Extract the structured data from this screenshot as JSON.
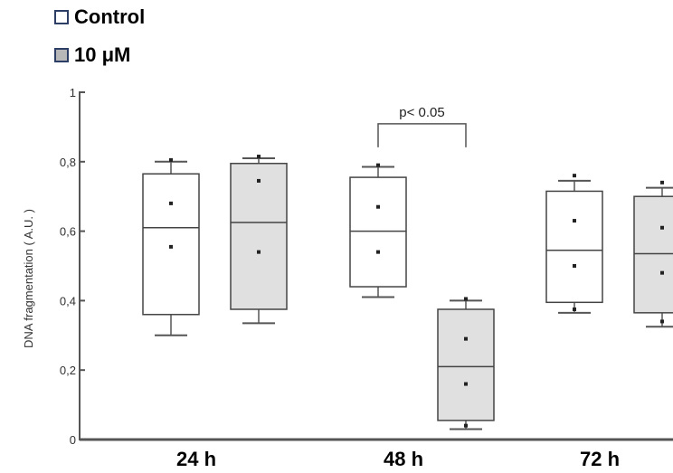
{
  "chart_data": {
    "type": "box",
    "ylabel": "DNA fragmentation ( A.U. )",
    "ylim": [
      0,
      1
    ],
    "yticks": [
      {
        "value": 0,
        "label": "0"
      },
      {
        "value": 0.2,
        "label": "0,2"
      },
      {
        "value": 0.4,
        "label": "0,4"
      },
      {
        "value": 0.6,
        "label": "0,6"
      },
      {
        "value": 0.8,
        "label": "0,8"
      },
      {
        "value": 1,
        "label": "1"
      }
    ],
    "categories": [
      "24 h",
      "48 h",
      "72 h"
    ],
    "legend": [
      {
        "name": "Control",
        "color": "#ffffff",
        "edge": "#2c3e66"
      },
      {
        "name": "10 μM",
        "color": "#b8b8b8",
        "edge": "#2c3e66"
      }
    ],
    "series": [
      {
        "name": "Control",
        "fill": "#ffffff",
        "boxes": [
          {
            "category": "24 h",
            "min": 0.3,
            "q1": 0.36,
            "median": 0.61,
            "q3": 0.765,
            "max": 0.8,
            "points": [
              0.805,
              0.68,
              0.555
            ]
          },
          {
            "category": "48 h",
            "min": 0.41,
            "q1": 0.44,
            "median": 0.6,
            "q3": 0.755,
            "max": 0.785,
            "points": [
              0.79,
              0.67,
              0.54
            ]
          },
          {
            "category": "72 h",
            "min": 0.365,
            "q1": 0.395,
            "median": 0.545,
            "q3": 0.715,
            "max": 0.745,
            "points": [
              0.76,
              0.63,
              0.5,
              0.375
            ]
          }
        ]
      },
      {
        "name": "10 μM",
        "fill": "#e0e0e0",
        "boxes": [
          {
            "category": "24 h",
            "min": 0.335,
            "q1": 0.375,
            "median": 0.625,
            "q3": 0.795,
            "max": 0.81,
            "points": [
              0.815,
              0.745,
              0.54
            ]
          },
          {
            "category": "48 h",
            "min": 0.03,
            "q1": 0.055,
            "median": 0.21,
            "q3": 0.375,
            "max": 0.4,
            "points": [
              0.405,
              0.29,
              0.16,
              0.04
            ]
          },
          {
            "category": "72 h",
            "min": 0.325,
            "q1": 0.365,
            "median": 0.535,
            "q3": 0.7,
            "max": 0.725,
            "points": [
              0.74,
              0.61,
              0.48,
              0.34
            ]
          }
        ]
      }
    ],
    "annotation": {
      "text": "p< 0.05",
      "category": "48 h",
      "value": 0.93
    }
  }
}
